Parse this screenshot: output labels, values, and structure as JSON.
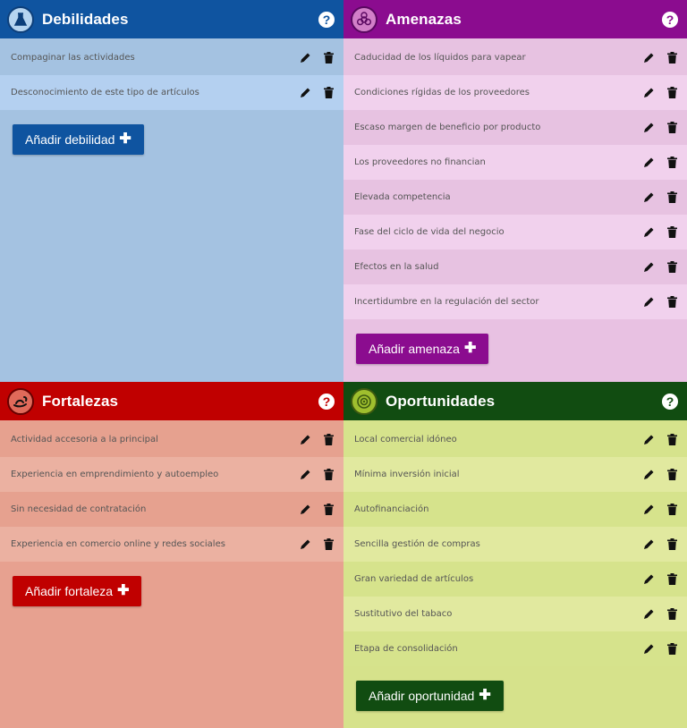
{
  "colors": {
    "debilidades": "#0f54a0",
    "amenazas": "#8b0c8f",
    "fortalezas": "#c00000",
    "oportunidades": "#114c11"
  },
  "debilidades": {
    "title": "Debilidades",
    "icon": "chemistry-icon",
    "help": "?",
    "items": [
      "Compaginar las actividades",
      "Desconocimiento de este tipo de artículos"
    ],
    "add_label": "Añadir debilidad"
  },
  "amenazas": {
    "title": "Amenazas",
    "icon": "biohazard-icon",
    "help": "?",
    "items": [
      "Caducidad de los líquidos para vapear",
      "Condiciones rígidas de los proveedores",
      "Escaso margen de beneficio por producto",
      "Los proveedores no financian",
      "Elevada competencia",
      "Fase del ciclo de vida del negocio",
      "Efectos en la salud",
      "Incertidumbre en la regulación del sector"
    ],
    "add_label": "Añadir amenaza"
  },
  "fortalezas": {
    "title": "Fortalezas",
    "icon": "scorpion-icon",
    "help": "?",
    "items": [
      "Actividad accesoria a la principal",
      "Experiencia en emprendimiento y autoempleo",
      "Sin necesidad de contratación",
      "Experiencia en comercio online y redes sociales"
    ],
    "add_label": "Añadir fortaleza"
  },
  "oportunidades": {
    "title": "Oportunidades",
    "icon": "target-icon",
    "help": "?",
    "items": [
      "Local comercial idóneo",
      "Mínima inversión inicial",
      "Autofinanciación",
      "Sencilla gestión de compras",
      "Gran variedad de artículos",
      "Sustitutivo del tabaco",
      "Etapa de consolidación"
    ],
    "add_label": "Añadir oportunidad"
  }
}
